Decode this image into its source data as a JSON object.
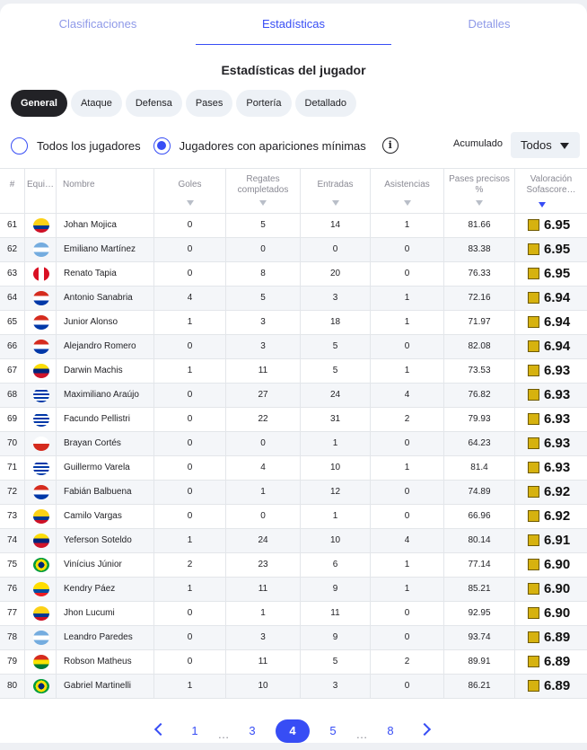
{
  "tabs": [
    "Clasificaciones",
    "Estadísticas",
    "Detalles"
  ],
  "section_title": "Estadísticas del jugador",
  "chips": [
    "General",
    "Ataque",
    "Defensa",
    "Pases",
    "Portería",
    "Detallado"
  ],
  "filters": {
    "radio_all": "Todos los jugadores",
    "radio_min": "Jugadores con apariciones mínimas",
    "info": "i",
    "accum_label": "Acumulado",
    "select_value": "Todos"
  },
  "columns": {
    "num": "#",
    "team": "Equi…",
    "name": "Nombre",
    "goals": "Goles",
    "dribbles": "Regates completados",
    "tackles": "Entradas",
    "assists": "Asistencias",
    "passes": "Pases precisos %",
    "rating": "Valoración Sofascore…"
  },
  "rows": [
    {
      "n": "61",
      "flag": "colombia",
      "name": "Johan Mojica",
      "g": "0",
      "d": "5",
      "t": "14",
      "a": "1",
      "p": "81.66",
      "r": "6.95"
    },
    {
      "n": "62",
      "flag": "argentina",
      "name": "Emiliano Martínez",
      "g": "0",
      "d": "0",
      "t": "0",
      "a": "0",
      "p": "83.38",
      "r": "6.95"
    },
    {
      "n": "63",
      "flag": "peru",
      "name": "Renato Tapia",
      "g": "0",
      "d": "8",
      "t": "20",
      "a": "0",
      "p": "76.33",
      "r": "6.95"
    },
    {
      "n": "64",
      "flag": "paraguay",
      "name": "Antonio Sanabria",
      "g": "4",
      "d": "5",
      "t": "3",
      "a": "1",
      "p": "72.16",
      "r": "6.94"
    },
    {
      "n": "65",
      "flag": "paraguay",
      "name": "Junior Alonso",
      "g": "1",
      "d": "3",
      "t": "18",
      "a": "1",
      "p": "71.97",
      "r": "6.94"
    },
    {
      "n": "66",
      "flag": "paraguay",
      "name": "Alejandro Romero",
      "g": "0",
      "d": "3",
      "t": "5",
      "a": "0",
      "p": "82.08",
      "r": "6.94"
    },
    {
      "n": "67",
      "flag": "venezuela",
      "name": "Darwin Machis",
      "g": "1",
      "d": "11",
      "t": "5",
      "a": "1",
      "p": "73.53",
      "r": "6.93"
    },
    {
      "n": "68",
      "flag": "uruguay",
      "name": "Maximiliano Araújo",
      "g": "0",
      "d": "27",
      "t": "24",
      "a": "4",
      "p": "76.82",
      "r": "6.93"
    },
    {
      "n": "69",
      "flag": "uruguay",
      "name": "Facundo Pellistri",
      "g": "0",
      "d": "22",
      "t": "31",
      "a": "2",
      "p": "79.93",
      "r": "6.93"
    },
    {
      "n": "70",
      "flag": "chile",
      "name": "Brayan Cortés",
      "g": "0",
      "d": "0",
      "t": "1",
      "a": "0",
      "p": "64.23",
      "r": "6.93"
    },
    {
      "n": "71",
      "flag": "uruguay",
      "name": "Guillermo Varela",
      "g": "0",
      "d": "4",
      "t": "10",
      "a": "1",
      "p": "81.4",
      "r": "6.93"
    },
    {
      "n": "72",
      "flag": "paraguay",
      "name": "Fabián Balbuena",
      "g": "0",
      "d": "1",
      "t": "12",
      "a": "0",
      "p": "74.89",
      "r": "6.92"
    },
    {
      "n": "73",
      "flag": "colombia",
      "name": "Camilo Vargas",
      "g": "0",
      "d": "0",
      "t": "1",
      "a": "0",
      "p": "66.96",
      "r": "6.92"
    },
    {
      "n": "74",
      "flag": "venezuela",
      "name": "Yeferson Soteldo",
      "g": "1",
      "d": "24",
      "t": "10",
      "a": "4",
      "p": "80.14",
      "r": "6.91"
    },
    {
      "n": "75",
      "flag": "brazil",
      "name": "Vinícius Júnior",
      "g": "2",
      "d": "23",
      "t": "6",
      "a": "1",
      "p": "77.14",
      "r": "6.90"
    },
    {
      "n": "76",
      "flag": "ecuador",
      "name": "Kendry Páez",
      "g": "1",
      "d": "11",
      "t": "9",
      "a": "1",
      "p": "85.21",
      "r": "6.90"
    },
    {
      "n": "77",
      "flag": "colombia",
      "name": "Jhon Lucumi",
      "g": "0",
      "d": "1",
      "t": "11",
      "a": "0",
      "p": "92.95",
      "r": "6.90"
    },
    {
      "n": "78",
      "flag": "argentina",
      "name": "Leandro Paredes",
      "g": "0",
      "d": "3",
      "t": "9",
      "a": "0",
      "p": "93.74",
      "r": "6.89"
    },
    {
      "n": "79",
      "flag": "bolivia",
      "name": "Robson Matheus",
      "g": "0",
      "d": "11",
      "t": "5",
      "a": "2",
      "p": "89.91",
      "r": "6.89"
    },
    {
      "n": "80",
      "flag": "brazil",
      "name": "Gabriel Martinelli",
      "g": "1",
      "d": "10",
      "t": "3",
      "a": "0",
      "p": "86.21",
      "r": "6.89"
    }
  ],
  "pagination": {
    "pages": [
      "1",
      "…",
      "3",
      "4",
      "5",
      "…",
      "8"
    ],
    "current": "4"
  },
  "colors": {
    "accent": "#374df5",
    "rating_badge": "#d6b20f"
  }
}
